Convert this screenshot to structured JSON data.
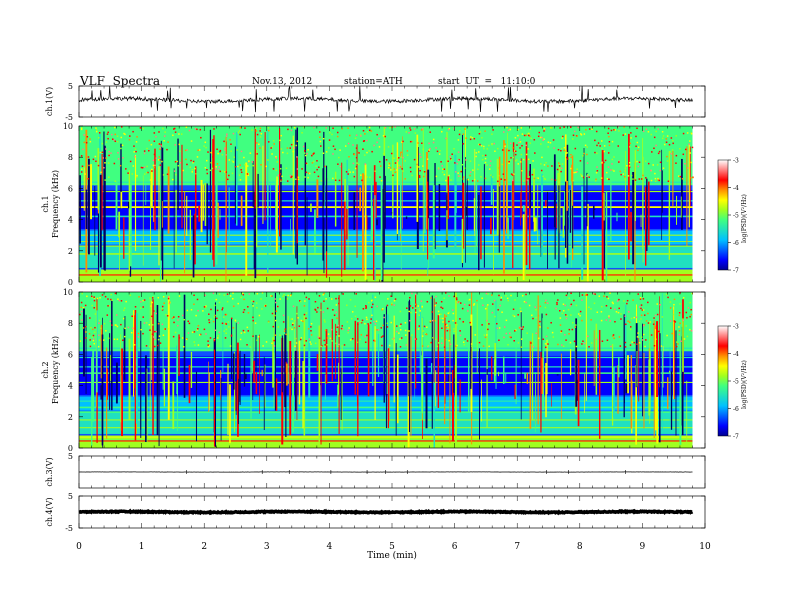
{
  "header": {
    "title": "VLF  Spectra",
    "date": "Nov.13, 2012",
    "station": "station=ATH",
    "start": "start  UT  =   11:10:0"
  },
  "chart_data": [
    {
      "type": "line",
      "name": "ch1",
      "ylabel": "ch.1(V)",
      "ylim": [
        -5,
        5
      ],
      "yticks": [
        "5",
        "-5"
      ],
      "xlim": [
        0,
        10
      ],
      "baseline": 0.5,
      "description": "noisy waveform around +0.5 V with spikes"
    },
    {
      "type": "heatmap",
      "name": "ch1-spectrogram",
      "ylabel": "ch.1\nFrequency (kHz)",
      "ylabel_lines": [
        "ch.1",
        "Frequency  (kHz)"
      ],
      "ylim": [
        0,
        10
      ],
      "yticks": [
        "0",
        "2",
        "4",
        "6",
        "8",
        "10"
      ],
      "xlim": [
        0,
        10
      ],
      "data_xmax": 9.8,
      "colorbar": {
        "label": "log(PSD)(V²/Hz)",
        "range": [
          -7,
          -3
        ],
        "ticks": [
          "-3",
          "-4",
          "-5",
          "-6",
          "-7"
        ],
        "colors": [
          "#000090",
          "#0000ff",
          "#0060ff",
          "#00c0ff",
          "#20e0c0",
          "#40ff80",
          "#a0ff20",
          "#ffff00",
          "#ff9000",
          "#ff0000",
          "#ff8080",
          "#ffffff"
        ]
      }
    },
    {
      "type": "heatmap",
      "name": "ch2-spectrogram",
      "ylabel_lines": [
        "ch.2",
        "Frequency  (kHz)"
      ],
      "ylim": [
        0,
        10
      ],
      "yticks": [
        "0",
        "2",
        "4",
        "6",
        "8",
        "10"
      ],
      "xlim": [
        0,
        10
      ],
      "data_xmax": 9.8,
      "colorbar": {
        "label": "log(PSD)(V²/Hz)",
        "range": [
          -7,
          -3
        ],
        "ticks": [
          "-3",
          "-4",
          "-5",
          "-6",
          "-7"
        ]
      }
    },
    {
      "type": "line",
      "name": "ch3",
      "ylabel": "ch.3(V)",
      "ylim": [
        -5,
        5
      ],
      "yticks": [
        "5"
      ],
      "xlim": [
        0,
        10
      ],
      "baseline": 0
    },
    {
      "type": "line",
      "name": "ch4",
      "ylabel": "ch.4(V)",
      "ylim": [
        -5,
        5
      ],
      "yticks": [
        "5",
        "-5"
      ],
      "xlim": [
        0,
        10
      ],
      "baseline": 0
    }
  ],
  "xaxis": {
    "label": "Time  (min)",
    "ticks": [
      "0",
      "1",
      "2",
      "3",
      "4",
      "5",
      "6",
      "7",
      "8",
      "9",
      "10"
    ]
  }
}
